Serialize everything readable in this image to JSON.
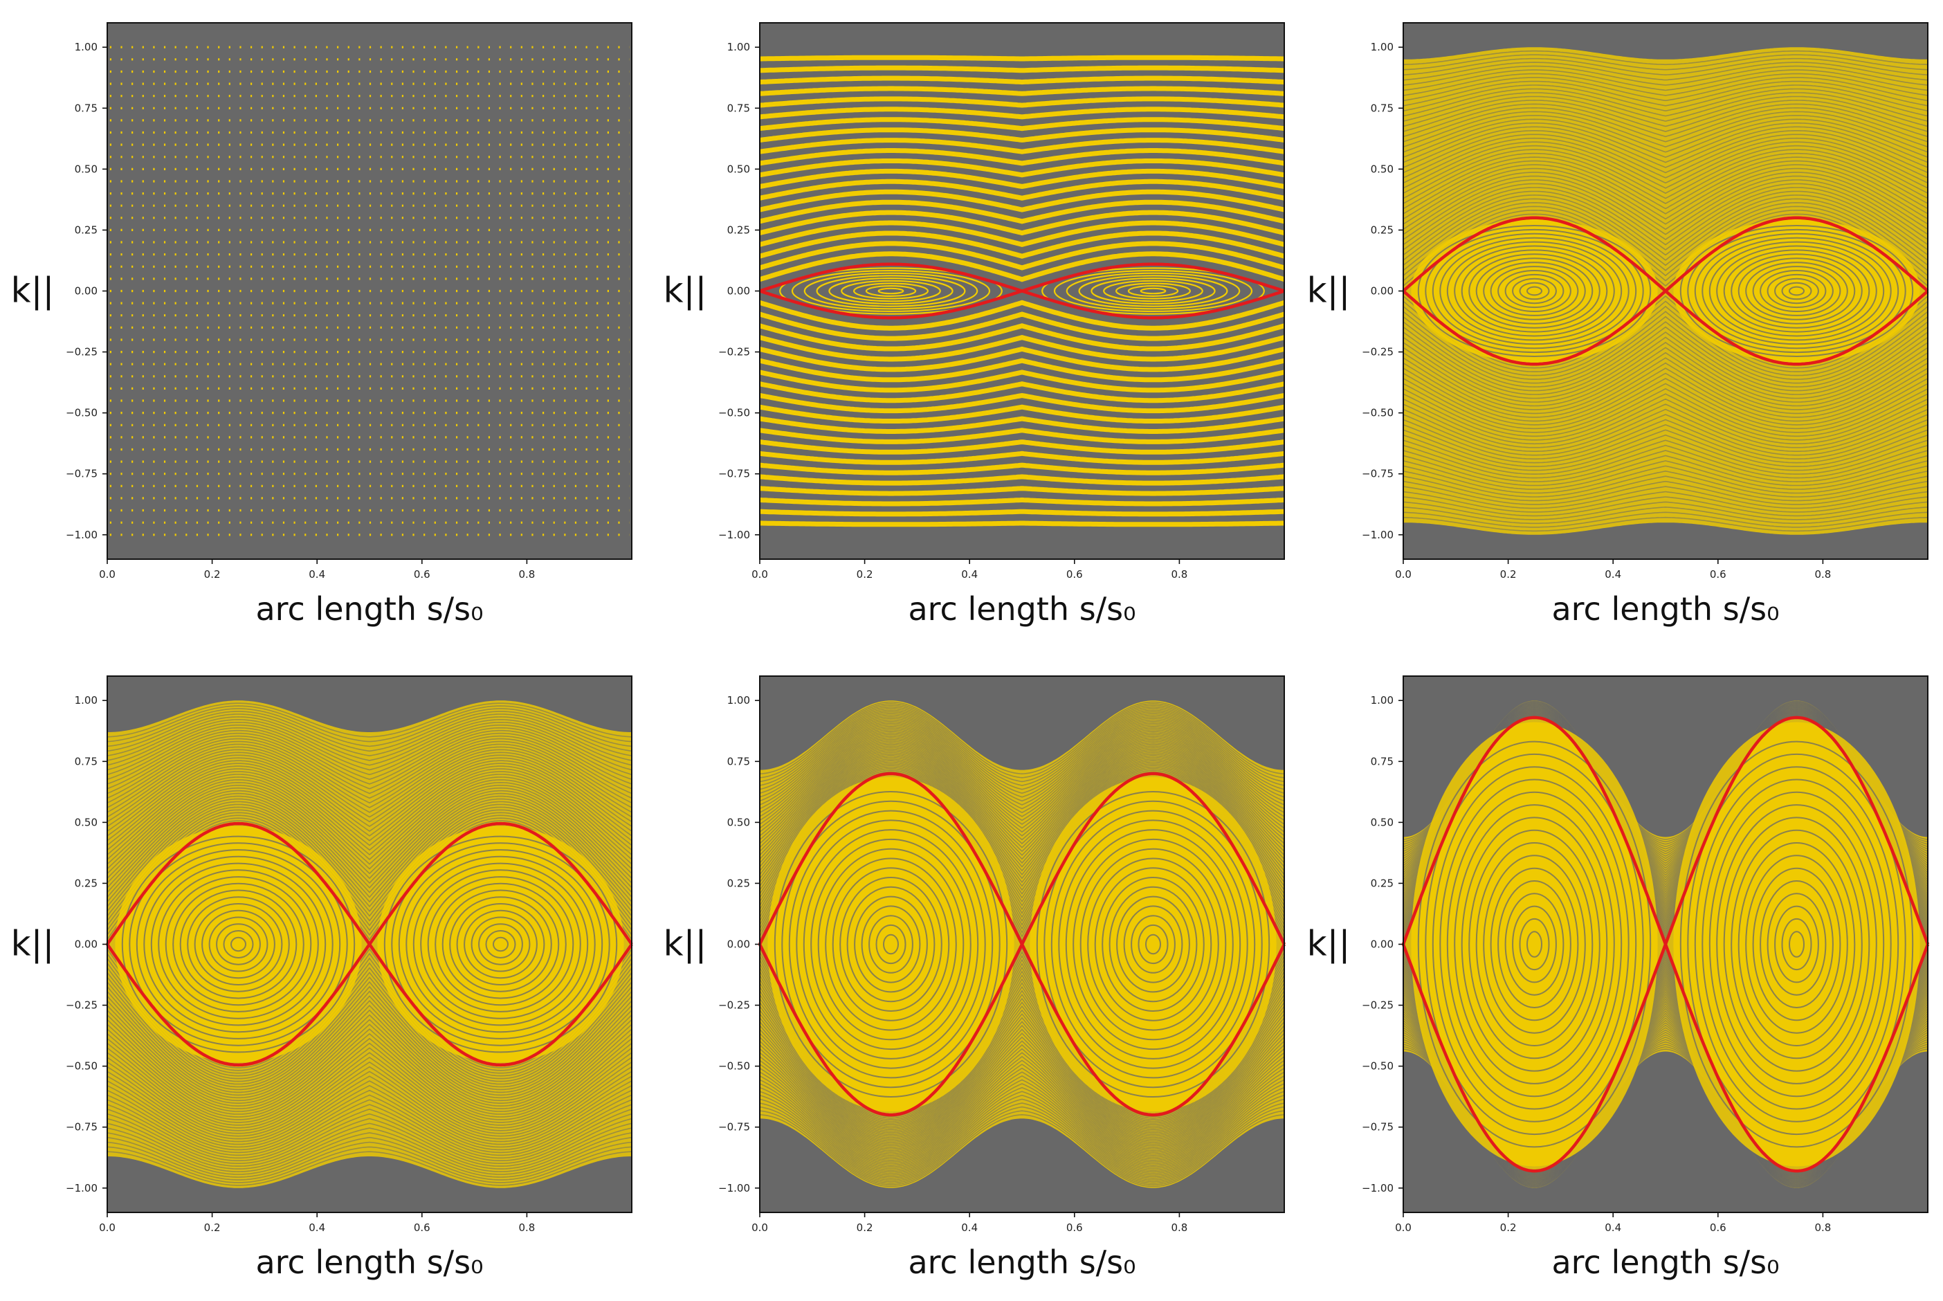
{
  "figure": {
    "description_label": "Poincaré sections in six panels",
    "colors": {
      "background": "#686868",
      "orbit": "#f2cc00",
      "separatrix": "#e31a1c",
      "axes": "#111111"
    }
  },
  "chart_data": [
    {
      "type": "scatter",
      "panel": 1,
      "xlabel": "arc length s/s₀",
      "ylabel": "k||",
      "xlim": [
        0.0,
        1.0
      ],
      "ylim": [
        -1.1,
        1.1
      ],
      "xticks": [
        "0.0",
        "0.2",
        "0.4",
        "0.6",
        "0.8"
      ],
      "yticks": [
        "1.00",
        "0.75",
        "0.50",
        "0.25",
        "0.00",
        "−0.25",
        "−0.50",
        "−0.75",
        "−1.00"
      ],
      "separatrix_halfwidth": 0.0,
      "outer_boundary": null,
      "pattern": "point lattice (unperturbed)"
    },
    {
      "type": "scatter",
      "panel": 2,
      "xlabel": "arc length s/s₀",
      "ylabel": "k||",
      "xlim": [
        0.0,
        1.0
      ],
      "ylim": [
        -1.1,
        1.1
      ],
      "xticks": [
        "0.0",
        "0.2",
        "0.4",
        "0.6",
        "0.8"
      ],
      "yticks": [
        "1.00",
        "0.75",
        "0.50",
        "0.25",
        "0.00",
        "−0.25",
        "−0.50",
        "−0.75",
        "−1.00"
      ],
      "separatrix_halfwidth": 0.11,
      "outer_boundary": [
        1.0,
        1.0
      ],
      "pattern": "bands with narrow islands"
    },
    {
      "type": "scatter",
      "panel": 3,
      "xlabel": "arc length s/s₀",
      "ylabel": "k||",
      "xlim": [
        0.0,
        1.0
      ],
      "ylim": [
        -1.1,
        1.1
      ],
      "xticks": [
        "0.0",
        "0.2",
        "0.4",
        "0.6",
        "0.8"
      ],
      "yticks": [
        "1.00",
        "0.75",
        "0.50",
        "0.25",
        "0.00",
        "−0.25",
        "−0.50",
        "−0.75",
        "−1.00"
      ],
      "separatrix_halfwidth": 0.3,
      "outer_boundary": [
        0.95,
        1.0
      ],
      "pattern": "islands with wavy bands"
    },
    {
      "type": "scatter",
      "panel": 4,
      "xlabel": "arc length s/s₀",
      "ylabel": "k||",
      "xlim": [
        0.0,
        1.0
      ],
      "ylim": [
        -1.1,
        1.1
      ],
      "xticks": [
        "0.0",
        "0.2",
        "0.4",
        "0.6",
        "0.8"
      ],
      "yticks": [
        "1.00",
        "0.75",
        "0.50",
        "0.25",
        "0.00",
        "−0.25",
        "−0.50",
        "−0.75",
        "−1.00"
      ],
      "separatrix_halfwidth": 0.495,
      "outer_boundary": [
        0.87,
        1.0
      ],
      "pattern": "dense islands"
    },
    {
      "type": "scatter",
      "panel": 5,
      "xlabel": "arc length s/s₀",
      "ylabel": "k||",
      "xlim": [
        0.0,
        1.0
      ],
      "ylim": [
        -1.1,
        1.1
      ],
      "xticks": [
        "0.0",
        "0.2",
        "0.4",
        "0.6",
        "0.8"
      ],
      "yticks": [
        "1.00",
        "0.75",
        "0.50",
        "0.25",
        "0.00",
        "−0.25",
        "−0.50",
        "−0.75",
        "−1.00"
      ],
      "separatrix_halfwidth": 0.7,
      "outer_boundary": [
        0.715,
        1.0
      ],
      "pattern": "dense islands"
    },
    {
      "type": "scatter",
      "panel": 6,
      "xlabel": "arc length s/s₀",
      "ylabel": "k||",
      "xlim": [
        0.0,
        1.0
      ],
      "ylim": [
        -1.1,
        1.1
      ],
      "xticks": [
        "0.0",
        "0.2",
        "0.4",
        "0.6",
        "0.8"
      ],
      "yticks": [
        "1.00",
        "0.75",
        "0.50",
        "0.25",
        "0.00",
        "−0.25",
        "−0.50",
        "−0.75",
        "−1.00"
      ],
      "separatrix_halfwidth": 0.93,
      "outer_boundary": [
        0.44,
        1.0
      ],
      "pattern": "dense islands"
    }
  ]
}
